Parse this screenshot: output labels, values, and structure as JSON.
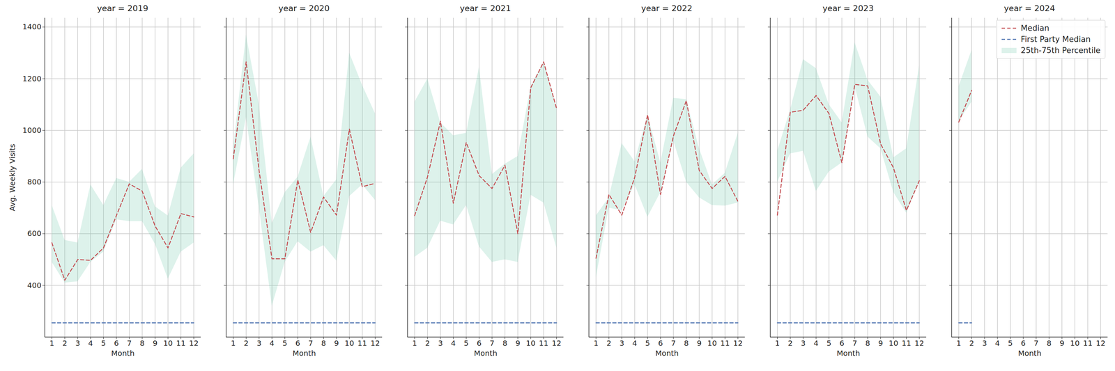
{
  "chart_data": [
    {
      "type": "line",
      "title": "year = 2019",
      "x": [
        1,
        2,
        3,
        4,
        5,
        6,
        7,
        8,
        9,
        10,
        11,
        12
      ],
      "xlim": [
        0.45,
        12.55
      ],
      "xticks": [
        1,
        2,
        3,
        4,
        5,
        6,
        7,
        8,
        9,
        10,
        11,
        12
      ],
      "ylim": [
        200,
        1435
      ],
      "yticks": [
        400,
        600,
        800,
        1000,
        1200,
        1400
      ],
      "x_label": "Month",
      "y_label": "Avg. Weekly Visits",
      "grid": true,
      "series": [
        {
          "name": "Median",
          "color": "#c44e52",
          "line_style": "dashed",
          "values": [
            565,
            420,
            500,
            497,
            545,
            670,
            793,
            765,
            630,
            545,
            678,
            665
          ]
        },
        {
          "name": "First Party Median",
          "color": "#4c72b0",
          "line_style": "dashed",
          "values": [
            255,
            255,
            255,
            255,
            255,
            255,
            255,
            255,
            255,
            255,
            255,
            255
          ]
        },
        {
          "name": "25th-75th Percentile",
          "type": "area",
          "color": "#66c2a5",
          "lower": [
            490,
            410,
            415,
            490,
            530,
            655,
            648,
            648,
            560,
            425,
            530,
            565
          ],
          "upper": [
            710,
            575,
            565,
            790,
            710,
            815,
            800,
            850,
            705,
            670,
            855,
            910
          ]
        }
      ]
    },
    {
      "type": "line",
      "title": "year = 2020",
      "x": [
        1,
        2,
        3,
        4,
        5,
        6,
        7,
        8,
        9,
        10,
        11,
        12
      ],
      "xlim": [
        0.45,
        12.55
      ],
      "xticks": [
        1,
        2,
        3,
        4,
        5,
        6,
        7,
        8,
        9,
        10,
        11,
        12
      ],
      "ylim": [
        200,
        1435
      ],
      "yticks": [
        400,
        600,
        800,
        1000,
        1200,
        1400
      ],
      "x_label": "Month",
      "grid": true,
      "tick_labels": "x",
      "series": [
        {
          "name": "Median",
          "color": "#c44e52",
          "line_style": "dashed",
          "values": [
            890,
            1265,
            845,
            503,
            503,
            808,
            605,
            742,
            672,
            1005,
            782,
            795
          ]
        },
        {
          "name": "First Party Median",
          "color": "#4c72b0",
          "line_style": "dashed",
          "values": [
            255,
            255,
            255,
            255,
            255,
            255,
            255,
            255,
            255,
            255,
            255,
            255
          ]
        },
        {
          "name": "25th-75th Percentile",
          "type": "area",
          "color": "#66c2a5",
          "lower": [
            790,
            1050,
            700,
            320,
            490,
            570,
            530,
            555,
            495,
            745,
            790,
            730
          ],
          "upper": [
            930,
            1370,
            1100,
            640,
            760,
            820,
            975,
            745,
            810,
            1300,
            1175,
            1065
          ]
        }
      ]
    },
    {
      "type": "line",
      "title": "year = 2021",
      "x": [
        1,
        2,
        3,
        4,
        5,
        6,
        7,
        8,
        9,
        10,
        11,
        12
      ],
      "xlim": [
        0.45,
        12.55
      ],
      "xticks": [
        1,
        2,
        3,
        4,
        5,
        6,
        7,
        8,
        9,
        10,
        11,
        12
      ],
      "ylim": [
        200,
        1435
      ],
      "yticks": [
        400,
        600,
        800,
        1000,
        1200,
        1400
      ],
      "x_label": "Month",
      "grid": true,
      "tick_labels": "x",
      "series": [
        {
          "name": "Median",
          "color": "#c44e52",
          "line_style": "dashed",
          "values": [
            670,
            820,
            1035,
            718,
            953,
            825,
            775,
            865,
            600,
            1165,
            1265,
            1085
          ]
        },
        {
          "name": "First Party Median",
          "color": "#4c72b0",
          "line_style": "dashed",
          "values": [
            255,
            255,
            255,
            255,
            255,
            255,
            255,
            255,
            255,
            255,
            255,
            255
          ]
        },
        {
          "name": "25th-75th Percentile",
          "type": "area",
          "color": "#66c2a5",
          "lower": [
            510,
            545,
            650,
            635,
            710,
            550,
            490,
            500,
            490,
            750,
            720,
            545
          ],
          "upper": [
            1110,
            1200,
            1030,
            980,
            990,
            1245,
            830,
            870,
            900,
            1170,
            1265,
            1090
          ]
        }
      ]
    },
    {
      "type": "line",
      "title": "year = 2022",
      "x": [
        1,
        2,
        3,
        4,
        5,
        6,
        7,
        8,
        9,
        10,
        11,
        12
      ],
      "xlim": [
        0.45,
        12.55
      ],
      "xticks": [
        1,
        2,
        3,
        4,
        5,
        6,
        7,
        8,
        9,
        10,
        11,
        12
      ],
      "ylim": [
        200,
        1435
      ],
      "yticks": [
        400,
        600,
        800,
        1000,
        1200,
        1400
      ],
      "x_label": "Month",
      "grid": true,
      "tick_labels": "x",
      "series": [
        {
          "name": "Median",
          "color": "#c44e52",
          "line_style": "dashed",
          "values": [
            505,
            752,
            672,
            818,
            1060,
            752,
            978,
            1115,
            845,
            775,
            822,
            725
          ]
        },
        {
          "name": "First Party Median",
          "color": "#4c72b0",
          "line_style": "dashed",
          "values": [
            255,
            255,
            255,
            255,
            255,
            255,
            255,
            255,
            255,
            255,
            255,
            255
          ]
        },
        {
          "name": "25th-75th Percentile",
          "type": "area",
          "color": "#66c2a5",
          "lower": [
            430,
            700,
            690,
            790,
            665,
            760,
            960,
            800,
            740,
            710,
            708,
            720
          ],
          "upper": [
            670,
            740,
            950,
            880,
            1060,
            875,
            1125,
            1120,
            930,
            790,
            835,
            990
          ]
        }
      ]
    },
    {
      "type": "line",
      "title": "year = 2023",
      "x": [
        1,
        2,
        3,
        4,
        5,
        6,
        7,
        8,
        9,
        10,
        11,
        12
      ],
      "xlim": [
        0.45,
        12.55
      ],
      "xticks": [
        1,
        2,
        3,
        4,
        5,
        6,
        7,
        8,
        9,
        10,
        11,
        12
      ],
      "ylim": [
        200,
        1435
      ],
      "yticks": [
        400,
        600,
        800,
        1000,
        1200,
        1400
      ],
      "x_label": "Month",
      "grid": true,
      "tick_labels": "x",
      "series": [
        {
          "name": "Median",
          "color": "#c44e52",
          "line_style": "dashed",
          "values": [
            672,
            1070,
            1078,
            1135,
            1065,
            875,
            1178,
            1172,
            948,
            855,
            690,
            805
          ]
        },
        {
          "name": "First Party Median",
          "color": "#4c72b0",
          "line_style": "dashed",
          "values": [
            255,
            255,
            255,
            255,
            255,
            255,
            255,
            255,
            255,
            255,
            255,
            255
          ]
        },
        {
          "name": "25th-75th Percentile",
          "type": "area",
          "color": "#66c2a5",
          "lower": [
            800,
            910,
            920,
            765,
            840,
            875,
            1170,
            975,
            930,
            760,
            680,
            800
          ],
          "upper": [
            920,
            1080,
            1275,
            1240,
            1100,
            1030,
            1340,
            1195,
            1130,
            895,
            930,
            1250
          ]
        }
      ]
    },
    {
      "type": "line",
      "title": "year = 2024",
      "x": [
        1,
        2
      ],
      "xlim": [
        0.45,
        12.55
      ],
      "xticks": [
        1,
        2,
        3,
        4,
        5,
        6,
        7,
        8,
        9,
        10,
        11,
        12
      ],
      "ylim": [
        200,
        1435
      ],
      "yticks": [
        400,
        600,
        800,
        1000,
        1200,
        1400
      ],
      "x_label": "Month",
      "grid": true,
      "tick_labels": "x",
      "legend": "upper right",
      "series": [
        {
          "name": "Median",
          "color": "#c44e52",
          "line_style": "dashed",
          "values": [
            1032,
            1155
          ]
        },
        {
          "name": "First Party Median",
          "color": "#4c72b0",
          "line_style": "dashed",
          "values": [
            255,
            255
          ]
        },
        {
          "name": "25th-75th Percentile",
          "type": "area",
          "color": "#66c2a5",
          "lower": [
            1035,
            1110
          ],
          "upper": [
            1170,
            1310
          ]
        }
      ]
    }
  ]
}
